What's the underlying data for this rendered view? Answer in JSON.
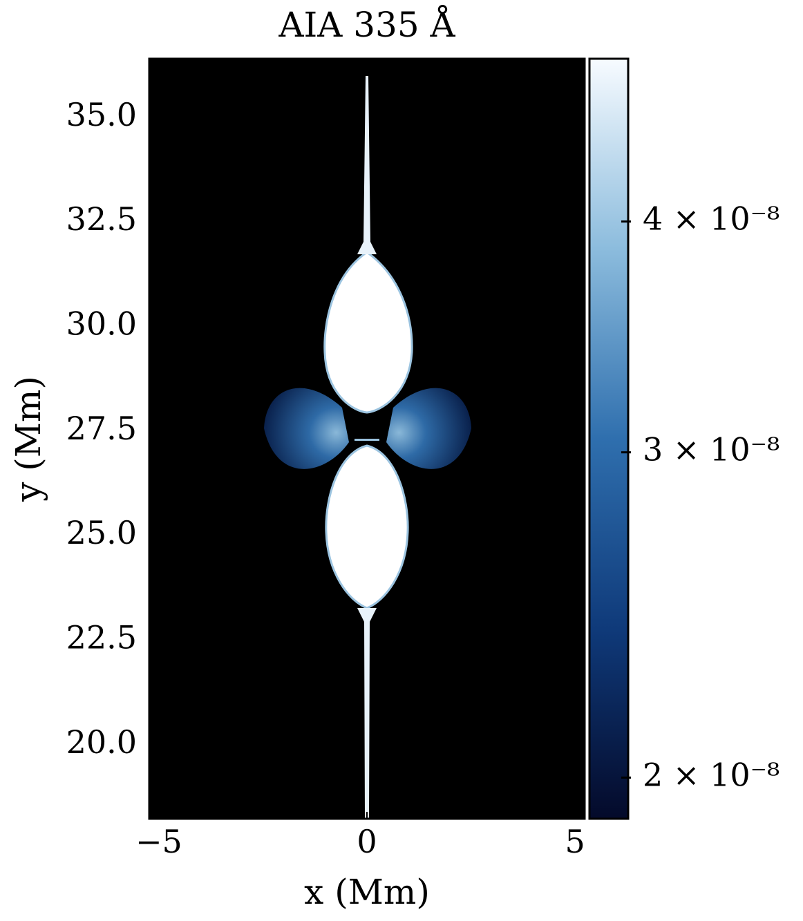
{
  "chart_data": {
    "type": "image",
    "title": "AIA 335 Å",
    "xlabel": "x (Mm)",
    "ylabel": "y (Mm)",
    "xlim": [
      -5.23,
      5.23
    ],
    "ylim": [
      18.23,
      36.4
    ],
    "xticks": [
      {
        "value": -5,
        "label": "−5"
      },
      0,
      5
    ],
    "yticks": [
      {
        "value": 20,
        "label": "20.0"
      },
      {
        "value": 22.5,
        "label": "22.5"
      },
      {
        "value": 25,
        "label": "25.0"
      },
      {
        "value": 27.5,
        "label": "27.5"
      },
      {
        "value": 30,
        "label": "30.0"
      },
      {
        "value": 32.5,
        "label": "32.5"
      },
      {
        "value": 35,
        "label": "35.0"
      }
    ],
    "colorbar": {
      "lim": [
        1.9e-08,
        4.9e-08
      ],
      "log": true,
      "ticks": [
        {
          "value": 2e-08,
          "label": "2 × 10⁻⁸"
        },
        {
          "value": 3e-08,
          "label": "3 × 10⁻⁸"
        },
        {
          "value": 4e-08,
          "label": "4 × 10⁻⁸"
        }
      ]
    }
  }
}
